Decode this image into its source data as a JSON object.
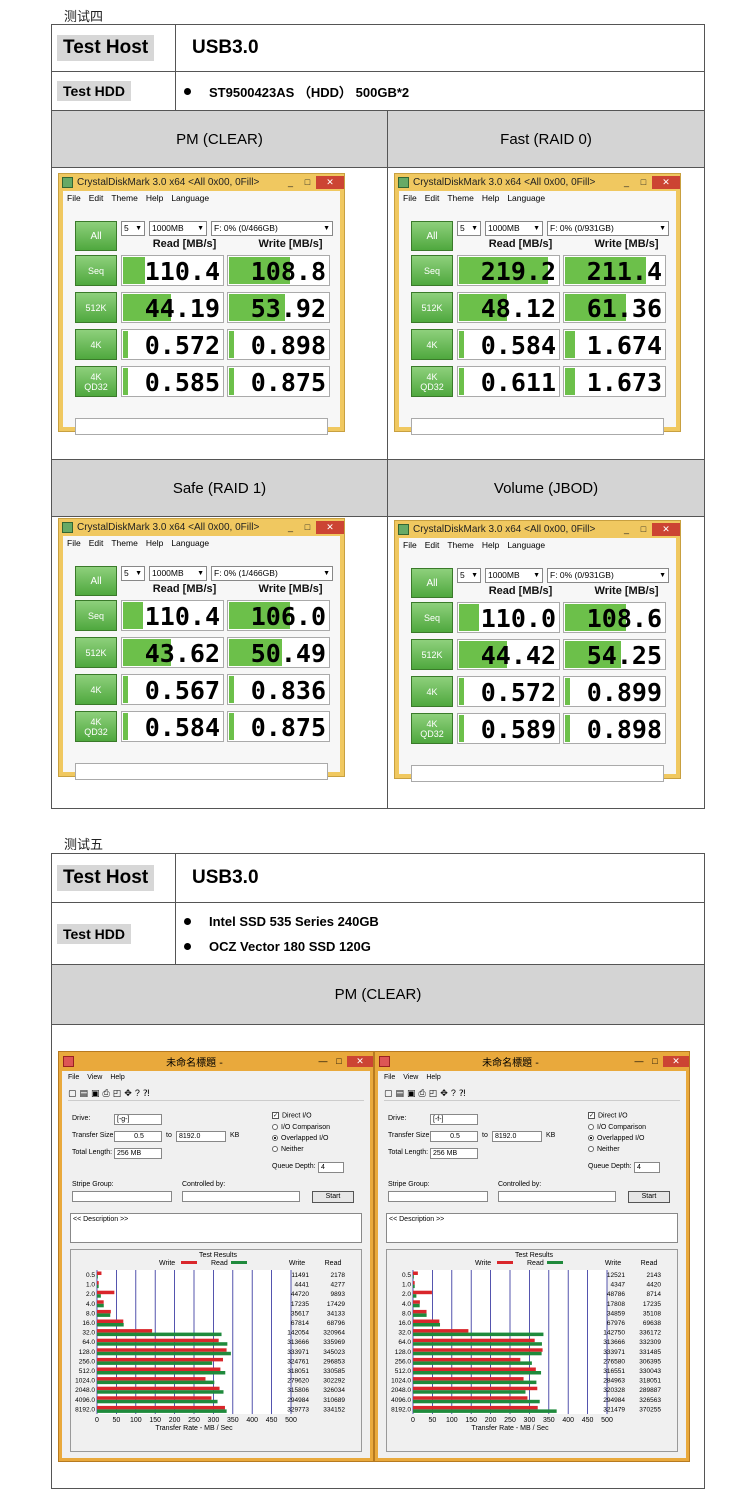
{
  "test4": {
    "section_title": "测试四",
    "host_key": "Test Host",
    "host_val": "USB3.0",
    "hdd_key": "Test    HDD",
    "hdd_items": [
      "ST9500423AS （HDD） 500GB*2"
    ],
    "panels": [
      {
        "heading": "PM (CLEAR)",
        "drive": "F: 0% (0/466GB)",
        "vals": [
          "110.4",
          "108.8",
          "44.19",
          "53.92",
          "0.572",
          "0.898",
          "0.585",
          "0.875"
        ],
        "fills": [
          0.22,
          0.6,
          0.48,
          0.55,
          0.05,
          0.05,
          0.05,
          0.05
        ]
      },
      {
        "heading": "Fast    (RAID 0)",
        "drive": "F: 0% (0/931GB)",
        "vals": [
          "219.2",
          "211.4",
          "48.12",
          "61.36",
          "0.584",
          "1.674",
          "0.611",
          "1.673"
        ],
        "fills": [
          0.88,
          0.8,
          0.48,
          0.6,
          0.05,
          0.1,
          0.05,
          0.1
        ]
      },
      {
        "heading": "Safe    (RAID 1)",
        "drive": "F: 0% (1/466GB)",
        "vals": [
          "110.4",
          "106.0",
          "43.62",
          "50.49",
          "0.567",
          "0.836",
          "0.584",
          "0.875"
        ],
        "fills": [
          0.2,
          0.6,
          0.48,
          0.52,
          0.05,
          0.05,
          0.05,
          0.05
        ]
      },
      {
        "heading": "Volume (JBOD)",
        "drive": "F: 0% (0/931GB)",
        "vals": [
          "110.0",
          "108.6",
          "44.42",
          "54.25",
          "0.572",
          "0.899",
          "0.589",
          "0.898"
        ],
        "fills": [
          0.2,
          0.6,
          0.48,
          0.55,
          0.05,
          0.05,
          0.05,
          0.05
        ]
      }
    ]
  },
  "cdm": {
    "title": "CrystalDiskMark 3.0 x64 <All 0x00, 0Fill>",
    "menu": [
      "File",
      "Edit",
      "Theme",
      "Help",
      "Language"
    ],
    "runs": "5",
    "size": "1000MB",
    "all_label": "All",
    "read_header": "Read [MB/s]",
    "write_header": "Write [MB/s]",
    "rows": [
      "Seq",
      "512K",
      "4K",
      "4K\nQD32"
    ]
  },
  "test5": {
    "section_title": "测试五",
    "host_key": "Test Host",
    "host_val": "USB3.0",
    "hdd_key": "Test    HDD",
    "hdd_items": [
      "Intel SSD 535 Series    240GB",
      "OCZ Vector 180 SSD    120G"
    ],
    "heading": "PM (CLEAR)"
  },
  "atto": {
    "title": "未命名標題 -",
    "menu": [
      "File",
      "View",
      "Help"
    ],
    "drive_label": "Drive:",
    "transfer_label": "Transfer Size:",
    "transfer_from": "0.5",
    "to_label": "to",
    "transfer_to": "8192.0",
    "kb_label": "KB",
    "total_label": "Total Length:",
    "total_val": "256 MB",
    "direct_io": "Direct I/O",
    "opt1": "I/O Comparison",
    "opt2": "Overlapped I/O",
    "opt3": "Neither",
    "queue_label": "Queue Depth:",
    "queue_val": "4",
    "stripe_label": "Stripe Group:",
    "controlled_label": "Controlled by:",
    "start_label": "Start",
    "desc_text": "<< Description >>",
    "results_title": "Test Results",
    "legend_write": "Write",
    "legend_read": "Read",
    "col_write": "Write",
    "col_read": "Read",
    "xlabel": "Transfer Rate - MB / Sec",
    "sizes": [
      "0.5",
      "1.0",
      "2.0",
      "4.0",
      "8.0",
      "16.0",
      "32.0",
      "64.0",
      "128.0",
      "256.0",
      "512.0",
      "1024.0",
      "2048.0",
      "4096.0",
      "8192.0"
    ],
    "ticks": [
      "0",
      "50",
      "100",
      "150",
      "200",
      "250",
      "300",
      "350",
      "400",
      "450",
      "500"
    ],
    "colors": {
      "write": "#d9262b",
      "read": "#1f8a3c",
      "grid": "#2a2a9a"
    },
    "windows": [
      {
        "drive": "[-g-]",
        "write": [
          11491,
          4441,
          44720,
          17235,
          35617,
          67814,
          142054,
          313666,
          333971,
          324761,
          318051,
          279620,
          315806,
          294984,
          329773
        ],
        "read": [
          2178,
          4277,
          9893,
          17429,
          34133,
          68796,
          320964,
          335969,
          345023,
          296853,
          330585,
          302292,
          326034,
          310689,
          334152
        ]
      },
      {
        "drive": "[-f-]",
        "write": [
          12521,
          4347,
          48786,
          17808,
          34859,
          67976,
          142750,
          313666,
          333971,
          276580,
          316551,
          284963,
          320328,
          294984,
          321479
        ],
        "read": [
          2143,
          4420,
          8714,
          17235,
          35108,
          69638,
          336172,
          332309,
          331485,
          306395,
          330043,
          318051,
          289887,
          326563,
          370255
        ]
      }
    ]
  }
}
